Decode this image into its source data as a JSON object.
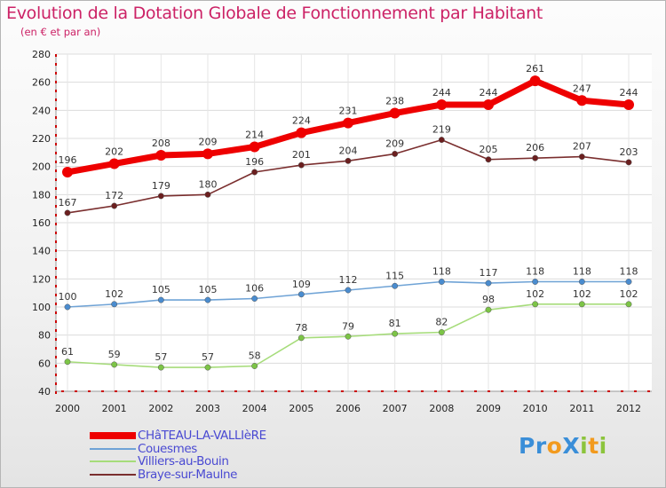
{
  "title": "Evolution de la Dotation Globale de Fonctionnement par Habitant",
  "subtitle": "(en € et par an)",
  "logo": {
    "text": "ProXiti",
    "letters": [
      {
        "ch": "P",
        "color": "#3a8ed8"
      },
      {
        "ch": "r",
        "color": "#3a8ed8"
      },
      {
        "ch": "o",
        "color": "#f29a1e"
      },
      {
        "ch": "X",
        "color": "#3a8ed8"
      },
      {
        "ch": "i",
        "color": "#8cc43c"
      },
      {
        "ch": "t",
        "color": "#f29a1e"
      },
      {
        "ch": "i",
        "color": "#8cc43c"
      }
    ]
  },
  "chart_data": {
    "type": "line",
    "title": "Evolution de la Dotation Globale de Fonctionnement par Habitant",
    "subtitle": "(en € et par an)",
    "x": [
      "2000",
      "2001",
      "2002",
      "2003",
      "2004",
      "2005",
      "2006",
      "2007",
      "2008",
      "2009",
      "2010",
      "2011",
      "2012"
    ],
    "ylim": [
      40,
      280
    ],
    "yticks": [
      40,
      60,
      80,
      100,
      120,
      140,
      160,
      180,
      200,
      220,
      240,
      260,
      280
    ],
    "grid": true,
    "legend_position": "bottom-left",
    "series": [
      {
        "name": "CHâTEAU-LA-VALLIèRE",
        "color": "#ee0000",
        "marker": "#ee0000",
        "emphasis": true,
        "values": [
          196,
          202,
          208,
          209,
          214,
          224,
          231,
          238,
          244,
          244,
          261,
          247,
          244
        ]
      },
      {
        "name": "Couesmes",
        "color": "#6fa3d6",
        "marker": "#4a8ccf",
        "emphasis": false,
        "values": [
          100,
          102,
          105,
          105,
          106,
          109,
          112,
          115,
          118,
          117,
          118,
          118,
          118
        ]
      },
      {
        "name": "Villiers-au-Bouin",
        "color": "#a6dc7a",
        "marker": "#7cc446",
        "emphasis": false,
        "values": [
          61,
          59,
          57,
          57,
          58,
          78,
          79,
          81,
          82,
          98,
          102,
          102,
          102
        ]
      },
      {
        "name": "Braye-sur-Maulne",
        "color": "#7a2e2e",
        "marker": "#6b1f1f",
        "emphasis": false,
        "values": [
          167,
          172,
          179,
          180,
          196,
          201,
          204,
          209,
          219,
          205,
          206,
          207,
          203
        ]
      }
    ]
  }
}
